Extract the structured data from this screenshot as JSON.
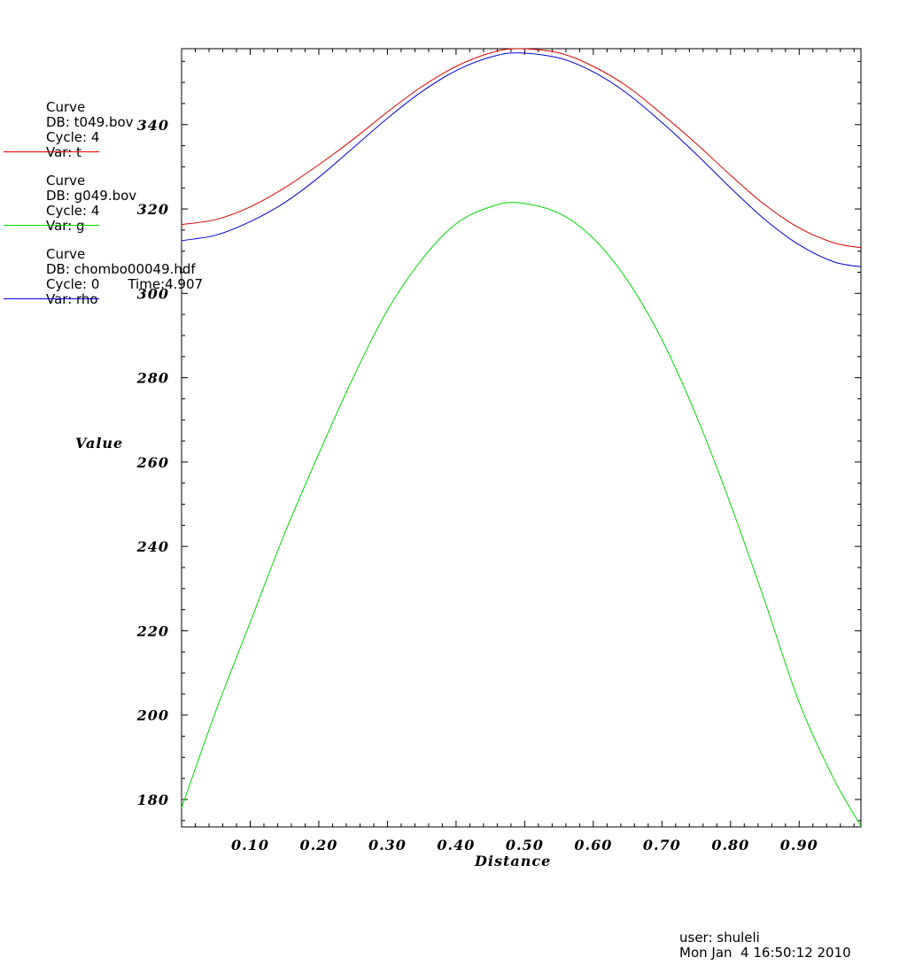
{
  "chart_data": {
    "type": "line",
    "title": "",
    "xlabel": "Distance",
    "ylabel": "Value",
    "xlim": [
      0.0,
      0.99
    ],
    "ylim": [
      173.5,
      358.0
    ],
    "xticks": [
      "0.10",
      "0.20",
      "0.30",
      "0.40",
      "0.50",
      "0.60",
      "0.70",
      "0.80",
      "0.90"
    ],
    "yticks": [
      "180",
      "200",
      "220",
      "240",
      "260",
      "280",
      "300",
      "320",
      "340"
    ],
    "grid": false,
    "legend_position": "left",
    "x": [
      0.0,
      0.05,
      0.1,
      0.15,
      0.2,
      0.25,
      0.3,
      0.35,
      0.4,
      0.45,
      0.49,
      0.55,
      0.6,
      0.65,
      0.7,
      0.75,
      0.8,
      0.85,
      0.9,
      0.95,
      0.99
    ],
    "series": [
      {
        "name": "t",
        "color": "#e00000",
        "values": [
          316.3,
          317.5,
          320.5,
          325.0,
          330.5,
          336.5,
          343.0,
          349.0,
          353.8,
          357.0,
          358.0,
          357.0,
          353.8,
          349.0,
          342.5,
          335.5,
          328.0,
          321.0,
          315.5,
          312.0,
          310.8
        ]
      },
      {
        "name": "g",
        "color": "#00dd00",
        "values": [
          178.0,
          201.0,
          222.0,
          243.0,
          262.0,
          280.0,
          296.0,
          308.0,
          316.5,
          320.5,
          321.5,
          319.0,
          313.0,
          303.0,
          289.0,
          271.0,
          250.0,
          227.0,
          203.0,
          185.0,
          173.7
        ]
      },
      {
        "name": "rho",
        "color": "#0000dd",
        "values": [
          312.5,
          313.8,
          317.0,
          321.5,
          327.5,
          334.5,
          341.5,
          347.8,
          352.8,
          356.0,
          357.0,
          355.8,
          352.5,
          347.3,
          340.5,
          333.0,
          325.0,
          317.5,
          311.5,
          307.5,
          306.3
        ]
      }
    ]
  },
  "legend": [
    {
      "line1": "Curve",
      "line2": "DB: t049.bov",
      "line3": "Cycle: 4",
      "time": "",
      "line4": "Var: t",
      "color": "#e00000"
    },
    {
      "line1": "Curve",
      "line2": "DB: g049.bov",
      "line3": "Cycle: 4",
      "time": "",
      "line4": "Var: g",
      "color": "#00dd00"
    },
    {
      "line1": "Curve",
      "line2": "DB: chombo00049.hdf",
      "line3": "Cycle: 0",
      "time": "Time:4.907",
      "line4": "Var: rho",
      "color": "#0000dd"
    }
  ],
  "footer": {
    "user": "user: shuleli",
    "date": "Mon Jan  4 16:50:12 2010"
  }
}
